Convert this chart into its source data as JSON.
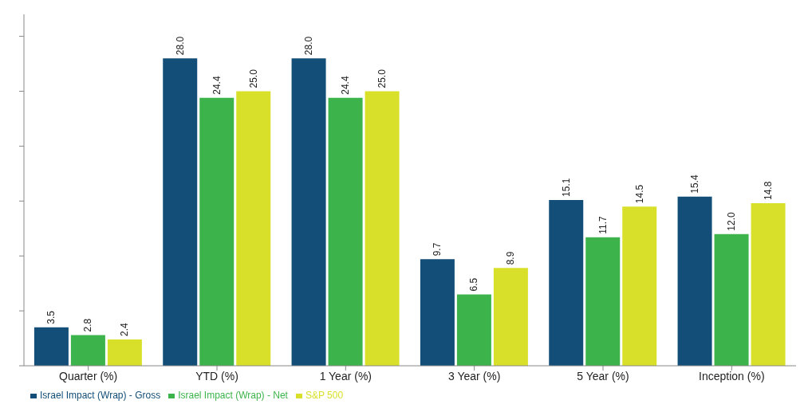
{
  "chart_data": {
    "type": "bar",
    "categories": [
      "Quarter (%)",
      "YTD (%)",
      "1 Year (%)",
      "3 Year (%)",
      "5 Year (%)",
      "Inception (%)"
    ],
    "series": [
      {
        "name": "Israel Impact (Wrap) - Gross",
        "color": "#124e78",
        "values": [
          3.5,
          28.0,
          28.0,
          9.7,
          15.1,
          15.4
        ],
        "value_labels": [
          "3.5",
          "28.0",
          "28.0",
          "9.7",
          "15.1",
          "15.4"
        ]
      },
      {
        "name": "Israel Impact (Wrap) - Net",
        "color": "#3cb44b",
        "values": [
          2.8,
          24.4,
          24.4,
          6.5,
          11.7,
          12.0
        ],
        "value_labels": [
          "2.8",
          "24.4",
          "24.4",
          "6.5",
          "11.7",
          "12.0"
        ]
      },
      {
        "name": "S&P 500",
        "color": "#d9e02a",
        "values": [
          2.4,
          25.0,
          25.0,
          8.9,
          14.5,
          14.8
        ],
        "value_labels": [
          "2.4",
          "25.0",
          "25.0",
          "8.9",
          "14.5",
          "14.8"
        ]
      }
    ],
    "ylim": [
      0,
      32
    ],
    "yticks": [
      {
        "value": 0,
        "label": null
      },
      {
        "value": 5,
        "label": null
      },
      {
        "value": 10,
        "label": null
      },
      {
        "value": 15,
        "label": null
      },
      {
        "value": 20,
        "label": null
      },
      {
        "value": 25,
        "label": null
      },
      {
        "value": 30,
        "label": null
      }
    ],
    "tick_labels": "x",
    "grid": false,
    "legend": "bottom left"
  }
}
